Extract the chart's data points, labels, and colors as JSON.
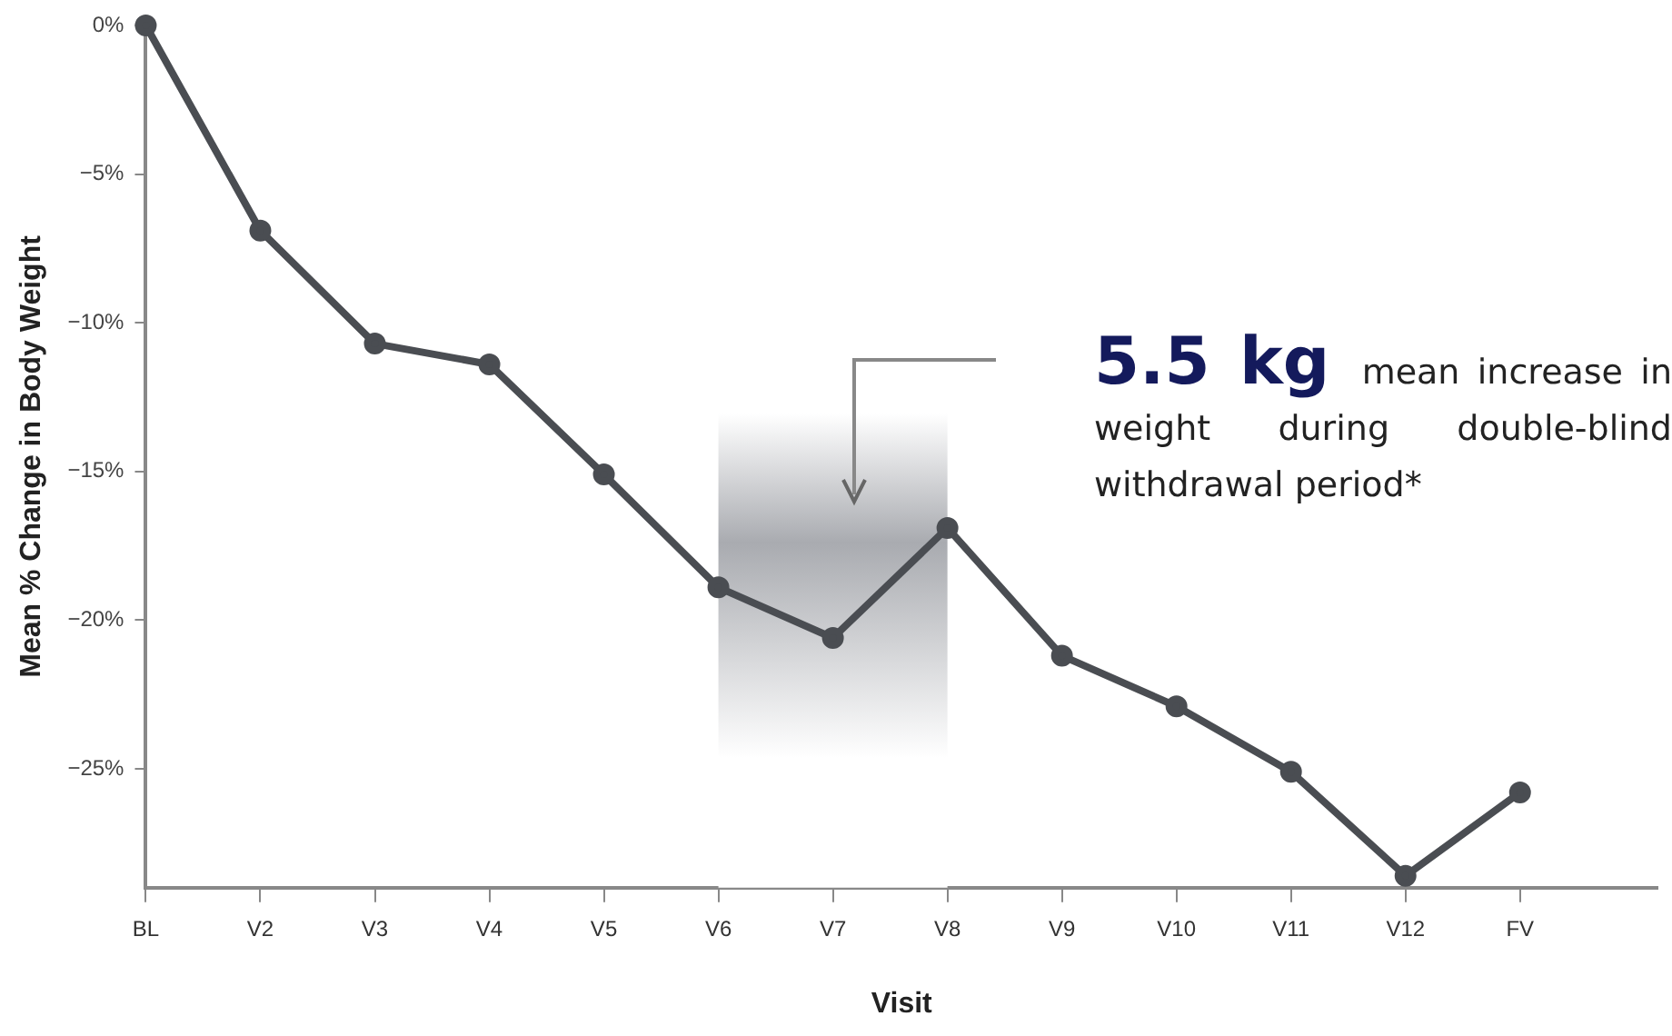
{
  "chart_data": {
    "type": "line",
    "xlabel": "Visit",
    "ylabel": "Mean % Change in Body Weight",
    "categories": [
      "BL",
      "V2",
      "V3",
      "V4",
      "V5",
      "V6",
      "V7",
      "V8",
      "V9",
      "V10",
      "V11",
      "V12",
      "FV"
    ],
    "series": [
      {
        "color": "#4a4d52",
        "values": [
          0,
          -6.9,
          -10.7,
          -11.4,
          -15.1,
          -18.9,
          -20.6,
          -16.9,
          -21.2,
          -22.9,
          -25.1,
          -28.6,
          -25.8
        ]
      }
    ],
    "ylim": [
      -29,
      0
    ],
    "yticks": [
      {
        "value": 0,
        "label": "0%"
      },
      {
        "value": -5,
        "label": "−5%"
      },
      {
        "value": -10,
        "label": "−10%"
      },
      {
        "value": -15,
        "label": "−15%"
      },
      {
        "value": -20,
        "label": "−20%"
      },
      {
        "value": -25,
        "label": "−25%"
      }
    ],
    "bands": [
      {
        "axis": "x",
        "from": "V6",
        "to": "V8",
        "color": "#a9abb0"
      }
    ],
    "annotations": [
      "5.5 kg",
      "mean increase in weight during double-blind withdrawal period*"
    ],
    "grid": false,
    "legend": false,
    "marker": "circle",
    "line_style": "solid"
  }
}
